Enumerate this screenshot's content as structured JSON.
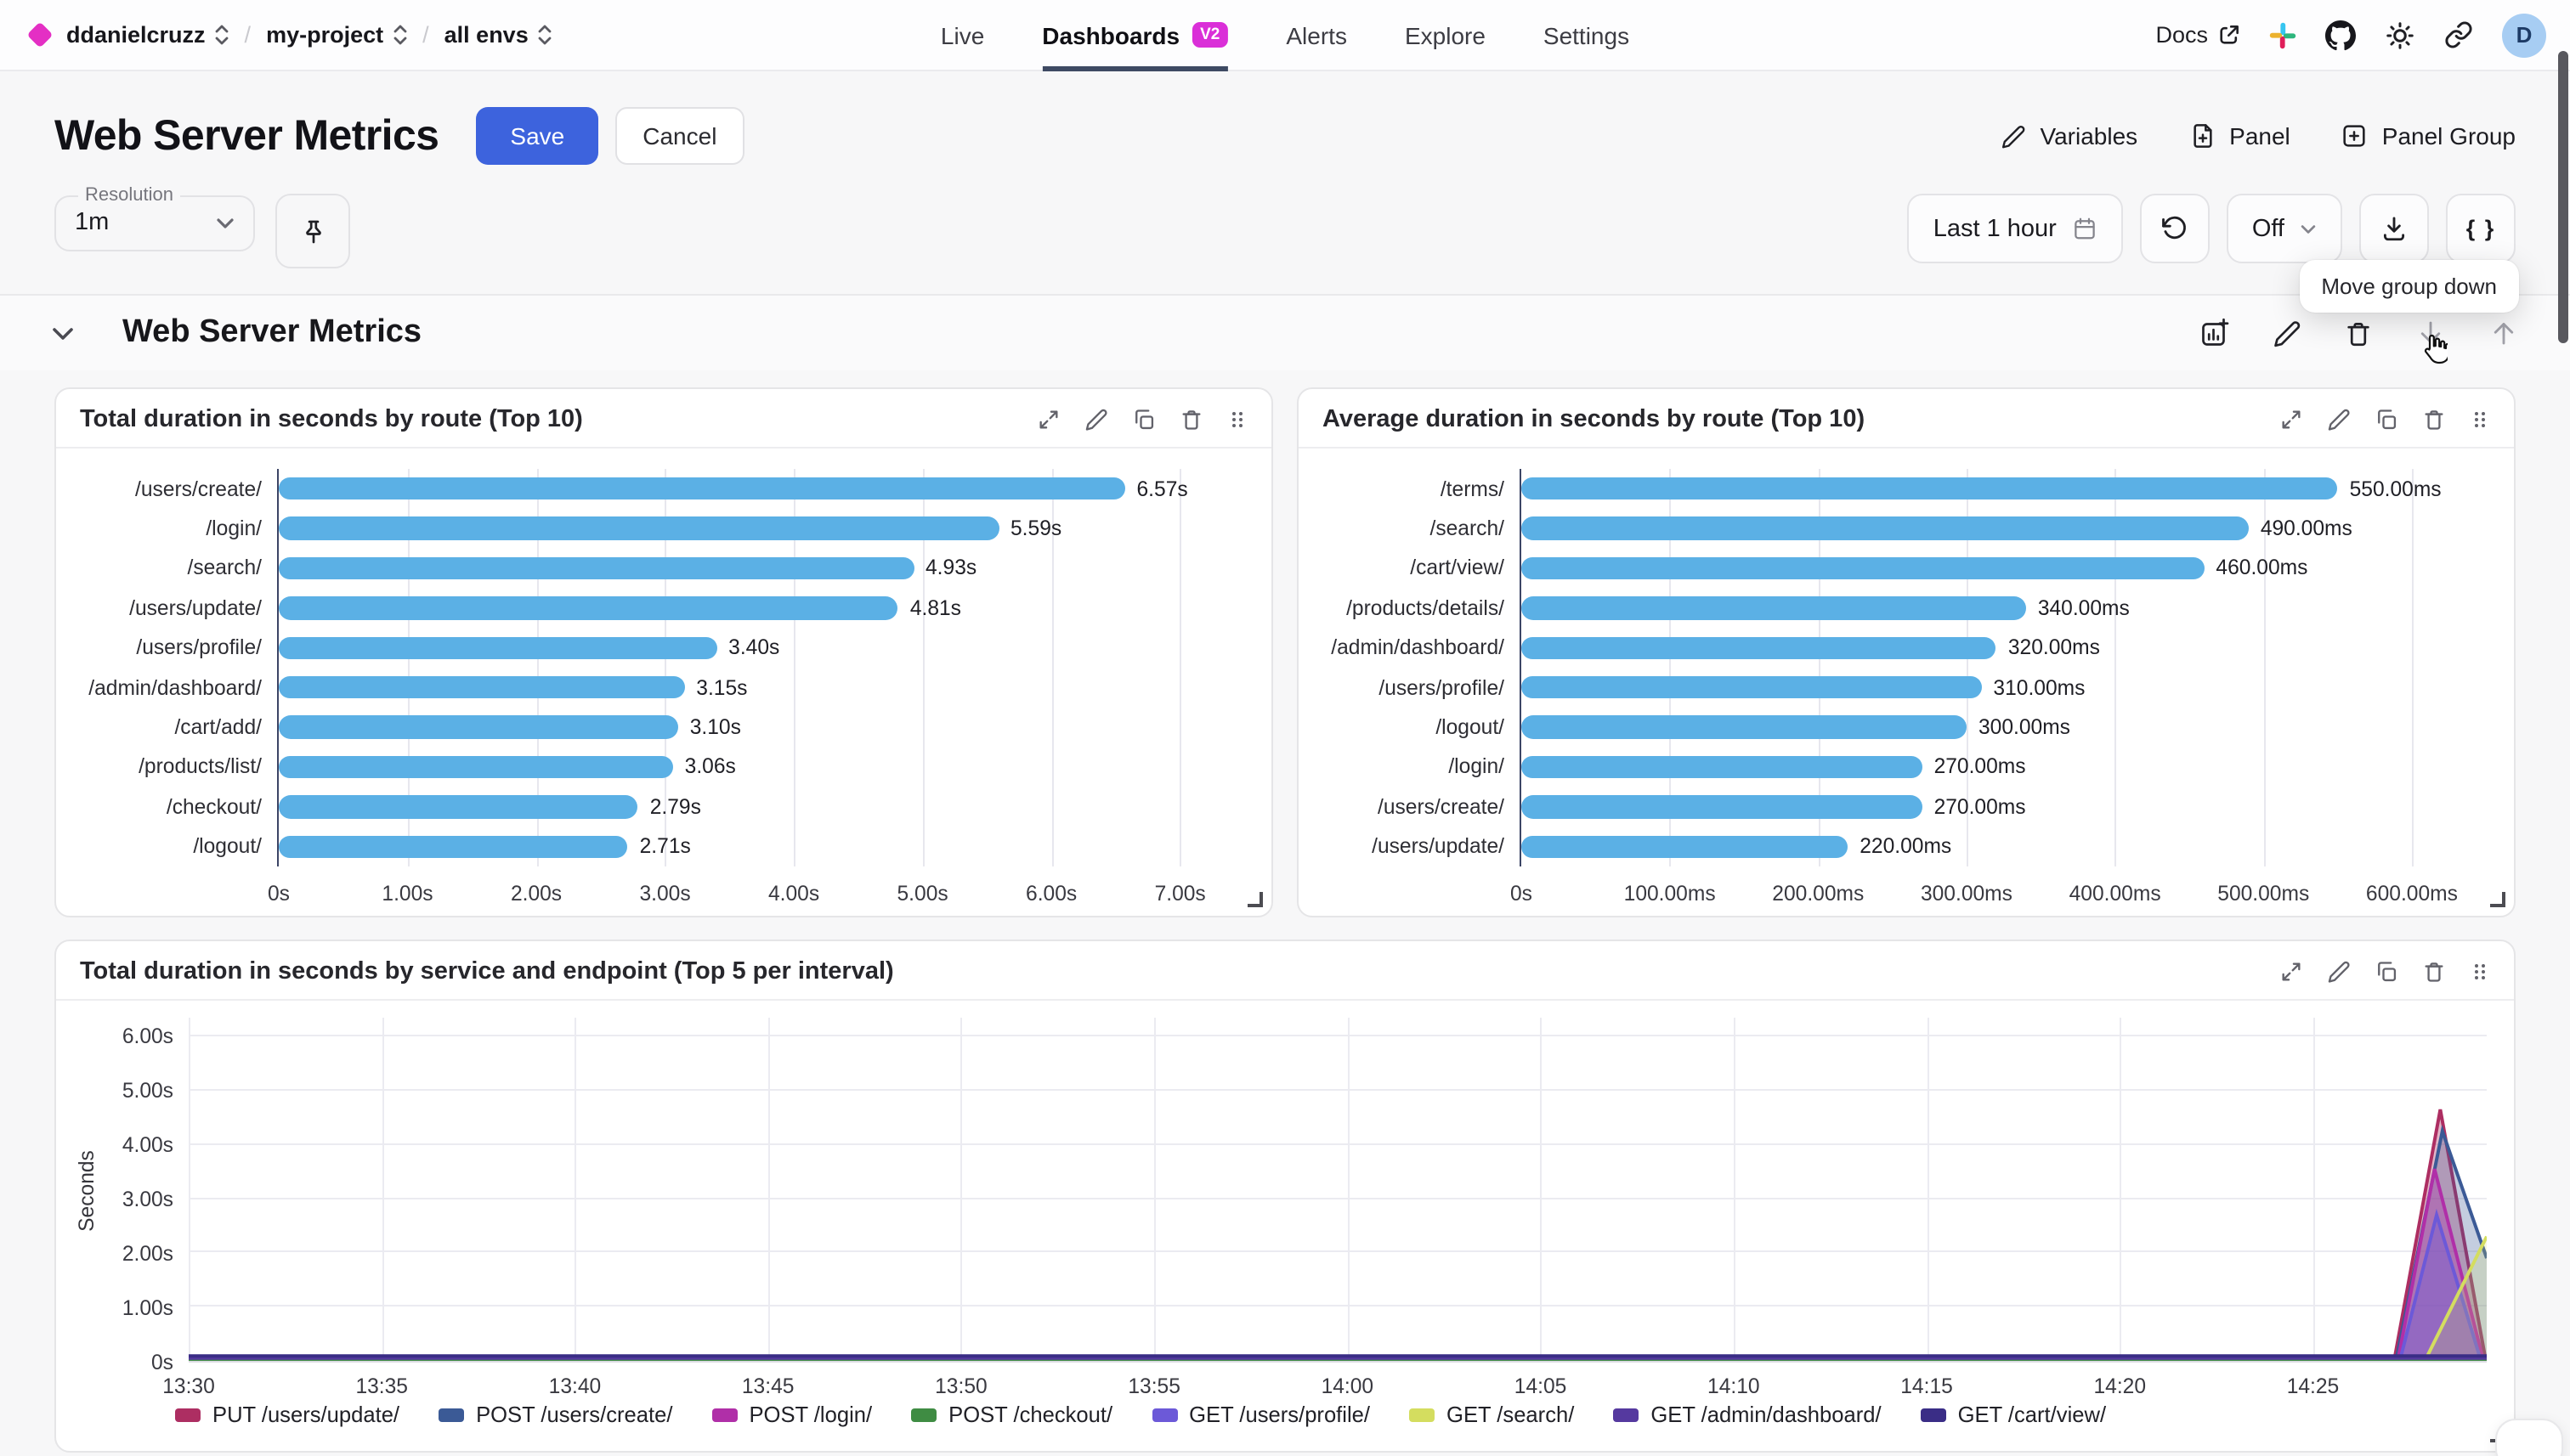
{
  "topbar": {
    "breadcrumb": [
      "ddanielcruzz",
      "my-project",
      "all envs"
    ],
    "nav": [
      {
        "label": "Live",
        "active": false,
        "badge": null
      },
      {
        "label": "Dashboards",
        "active": true,
        "badge": "V2"
      },
      {
        "label": "Alerts",
        "active": false,
        "badge": null
      },
      {
        "label": "Explore",
        "active": false,
        "badge": null
      },
      {
        "label": "Settings",
        "active": false,
        "badge": null
      }
    ],
    "docs_label": "Docs",
    "avatar_initial": "D"
  },
  "header": {
    "title": "Web Server Metrics",
    "save": "Save",
    "cancel": "Cancel",
    "variables": "Variables",
    "panel": "Panel",
    "panel_group": "Panel Group"
  },
  "controls": {
    "resolution_label": "Resolution",
    "resolution_value": "1m",
    "time_range": "Last 1 hour",
    "auto_refresh": "Off",
    "braces": "{ }",
    "tooltip": "Move group down"
  },
  "group": {
    "title": "Web Server Metrics"
  },
  "colors": {
    "accent_blue": "#3d63dd",
    "badge_magenta": "#da2fd8",
    "bar_blue": "#5bb0e5",
    "axis_line": "#3c4566",
    "gridline": "#e7e7ee",
    "nav_underline": "#3e4a63"
  },
  "chart_data": [
    {
      "type": "bar",
      "orientation": "horizontal",
      "title": "Total duration in seconds by route (Top 10)",
      "categories": [
        "/users/create/",
        "/login/",
        "/search/",
        "/users/update/",
        "/users/profile/",
        "/admin/dashboard/",
        "/cart/add/",
        "/products/list/",
        "/checkout/",
        "/logout/"
      ],
      "values": [
        6.57,
        5.59,
        4.93,
        4.81,
        3.4,
        3.15,
        3.1,
        3.06,
        2.79,
        2.71
      ],
      "value_labels": [
        "6.57s",
        "5.59s",
        "4.93s",
        "4.81s",
        "3.40s",
        "3.15s",
        "3.10s",
        "3.06s",
        "2.79s",
        "2.71s"
      ],
      "xticks": [
        {
          "v": 0,
          "label": "0s"
        },
        {
          "v": 1,
          "label": "1.00s"
        },
        {
          "v": 2,
          "label": "2.00s"
        },
        {
          "v": 3,
          "label": "3.00s"
        },
        {
          "v": 4,
          "label": "4.00s"
        },
        {
          "v": 5,
          "label": "5.00s"
        },
        {
          "v": 6,
          "label": "6.00s"
        },
        {
          "v": 7,
          "label": "7.00s"
        }
      ],
      "xmax": 7.55,
      "bar_color": "#5bb0e5",
      "grid": true
    },
    {
      "type": "bar",
      "orientation": "horizontal",
      "title": "Average duration in seconds by route (Top 10)",
      "categories": [
        "/terms/",
        "/search/",
        "/cart/view/",
        "/products/details/",
        "/admin/dashboard/",
        "/users/profile/",
        "/logout/",
        "/login/",
        "/users/create/",
        "/users/update/"
      ],
      "values": [
        550,
        490,
        460,
        340,
        320,
        310,
        300,
        270,
        270,
        220
      ],
      "value_labels": [
        "550.00ms",
        "490.00ms",
        "460.00ms",
        "340.00ms",
        "320.00ms",
        "310.00ms",
        "300.00ms",
        "270.00ms",
        "270.00ms",
        "220.00ms"
      ],
      "xticks": [
        {
          "v": 0,
          "label": "0s"
        },
        {
          "v": 100,
          "label": "100.00ms"
        },
        {
          "v": 200,
          "label": "200.00ms"
        },
        {
          "v": 300,
          "label": "300.00ms"
        },
        {
          "v": 400,
          "label": "400.00ms"
        },
        {
          "v": 500,
          "label": "500.00ms"
        },
        {
          "v": 600,
          "label": "600.00ms"
        }
      ],
      "xmax": 655,
      "bar_color": "#5bb0e5",
      "grid": true
    },
    {
      "type": "area",
      "title": "Total duration in seconds by service and endpoint (Top 5 per interval)",
      "ylabel": "Seconds",
      "yticks": [
        {
          "v": 0,
          "label": "0s"
        },
        {
          "v": 1,
          "label": "1.00s"
        },
        {
          "v": 2,
          "label": "2.00s"
        },
        {
          "v": 3,
          "label": "3.00s"
        },
        {
          "v": 4,
          "label": "4.00s"
        },
        {
          "v": 5,
          "label": "5.00s"
        },
        {
          "v": 6,
          "label": "6.00s"
        }
      ],
      "ymax": 6.35,
      "x_domain_minutes": [
        0,
        59.5
      ],
      "xticks": [
        {
          "m": 0,
          "label": "13:30"
        },
        {
          "m": 5,
          "label": "13:35"
        },
        {
          "m": 10,
          "label": "13:40"
        },
        {
          "m": 15,
          "label": "13:45"
        },
        {
          "m": 20,
          "label": "13:50"
        },
        {
          "m": 25,
          "label": "13:55"
        },
        {
          "m": 30,
          "label": "14:00"
        },
        {
          "m": 35,
          "label": "14:05"
        },
        {
          "m": 40,
          "label": "14:10"
        },
        {
          "m": 45,
          "label": "14:15"
        },
        {
          "m": 50,
          "label": "14:20"
        },
        {
          "m": 55,
          "label": "14:25"
        }
      ],
      "grid": true,
      "legend_position": "bottom",
      "series": [
        {
          "name": "PUT /users/update/",
          "color": "#ad2e62",
          "fill_opacity": 0.35,
          "points": [
            [
              0,
              0
            ],
            [
              57.1,
              0
            ],
            [
              58.3,
              4.65
            ],
            [
              59.45,
              0.1
            ]
          ]
        },
        {
          "name": "POST /users/create/",
          "color": "#3b5a96",
          "fill_opacity": 0.3,
          "points": [
            [
              0,
              0
            ],
            [
              57.15,
              0
            ],
            [
              58.35,
              4.25
            ],
            [
              59.5,
              1.9
            ]
          ]
        },
        {
          "name": "POST /login/",
          "color": "#b02fa8",
          "fill_opacity": 0.35,
          "points": [
            [
              0,
              0
            ],
            [
              57.2,
              0
            ],
            [
              58.15,
              3.55
            ],
            [
              59.4,
              0.05
            ]
          ]
        },
        {
          "name": "GET /users/profile/",
          "color": "#6c59d8",
          "fill_opacity": 0.4,
          "points": [
            [
              0,
              0
            ],
            [
              57.25,
              0
            ],
            [
              58.2,
              2.7
            ],
            [
              59.35,
              0
            ]
          ]
        },
        {
          "name": "GET /search/",
          "color": "#d4dd5f",
          "fill_opacity": 0.2,
          "points": [
            [
              0,
              0
            ],
            [
              57.9,
              0
            ],
            [
              59.5,
              2.3
            ]
          ]
        },
        {
          "name": "POST /checkout/",
          "color": "#3f8c43",
          "fill_opacity": 0,
          "points": [
            [
              0,
              0.02
            ],
            [
              59.5,
              0.02
            ]
          ]
        },
        {
          "name": "GET /admin/dashboard/",
          "color": "#55399f",
          "fill_opacity": 0,
          "points": [
            [
              0,
              0.05
            ],
            [
              59.5,
              0.05
            ]
          ]
        },
        {
          "name": "GET /cart/view/",
          "color": "#3a2d86",
          "fill_opacity": 0,
          "points": [
            [
              0,
              0.09
            ],
            [
              59.5,
              0.09
            ]
          ]
        }
      ],
      "legend": [
        {
          "label": "PUT /users/update/",
          "color": "#ad2e62"
        },
        {
          "label": "POST /users/create/",
          "color": "#3b5a96"
        },
        {
          "label": "POST /login/",
          "color": "#b02fa8"
        },
        {
          "label": "POST /checkout/",
          "color": "#3f8c43"
        },
        {
          "label": "GET /users/profile/",
          "color": "#6c59d8"
        },
        {
          "label": "GET /search/",
          "color": "#d4dd5f"
        },
        {
          "label": "GET /admin/dashboard/",
          "color": "#55399f"
        },
        {
          "label": "GET /cart/view/",
          "color": "#3a2d86"
        }
      ]
    }
  ]
}
